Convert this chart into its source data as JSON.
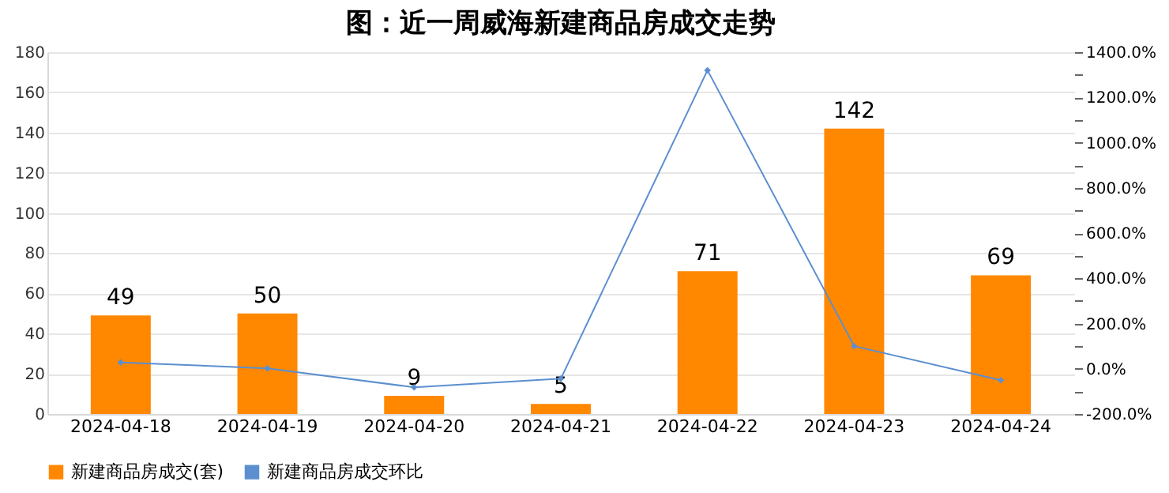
{
  "chart_data": {
    "type": "bar",
    "title": "图：近一周威海新建商品房成交走势",
    "categories": [
      "2024-04-18",
      "2024-04-19",
      "2024-04-20",
      "2024-04-21",
      "2024-04-22",
      "2024-04-23",
      "2024-04-24"
    ],
    "series": [
      {
        "name": "新建商品房成交(套)",
        "color": "#ff8800",
        "values": [
          49,
          50,
          9,
          5,
          71,
          142,
          69
        ],
        "value_labels": [
          "49",
          "50",
          "9",
          "5",
          "71",
          "142",
          "69"
        ]
      },
      {
        "name": "新建商品房成交环比",
        "type": "line",
        "axis": "y2",
        "color": "#5b8fcf",
        "marker": "diamond",
        "values": [
          28,
          2,
          -82,
          -44,
          1320,
          100,
          -51
        ]
      }
    ],
    "ylim": [
      0,
      180
    ],
    "yticks": [
      0,
      20,
      40,
      60,
      80,
      100,
      120,
      140,
      160,
      180
    ],
    "y2lim": [
      -200,
      1400
    ],
    "y2ticks": [
      {
        "value": -200,
        "label": "-200.0%"
      },
      {
        "value": -100,
        "label": null
      },
      {
        "value": 0,
        "label": "0.0%"
      },
      {
        "value": 100,
        "label": null
      },
      {
        "value": 200,
        "label": "200.0%"
      },
      {
        "value": 300,
        "label": null
      },
      {
        "value": 400,
        "label": "400.0%"
      },
      {
        "value": 500,
        "label": null
      },
      {
        "value": 600,
        "label": "600.0%"
      },
      {
        "value": 700,
        "label": null
      },
      {
        "value": 800,
        "label": "800.0%"
      },
      {
        "value": 900,
        "label": null
      },
      {
        "value": 1000,
        "label": "1000.0%"
      },
      {
        "value": 1100,
        "label": null
      },
      {
        "value": 1200,
        "label": "1200.0%"
      },
      {
        "value": 1300,
        "label": null
      },
      {
        "value": 1400,
        "label": "1400.0%"
      }
    ],
    "grid": "y",
    "legend": "bottom"
  }
}
